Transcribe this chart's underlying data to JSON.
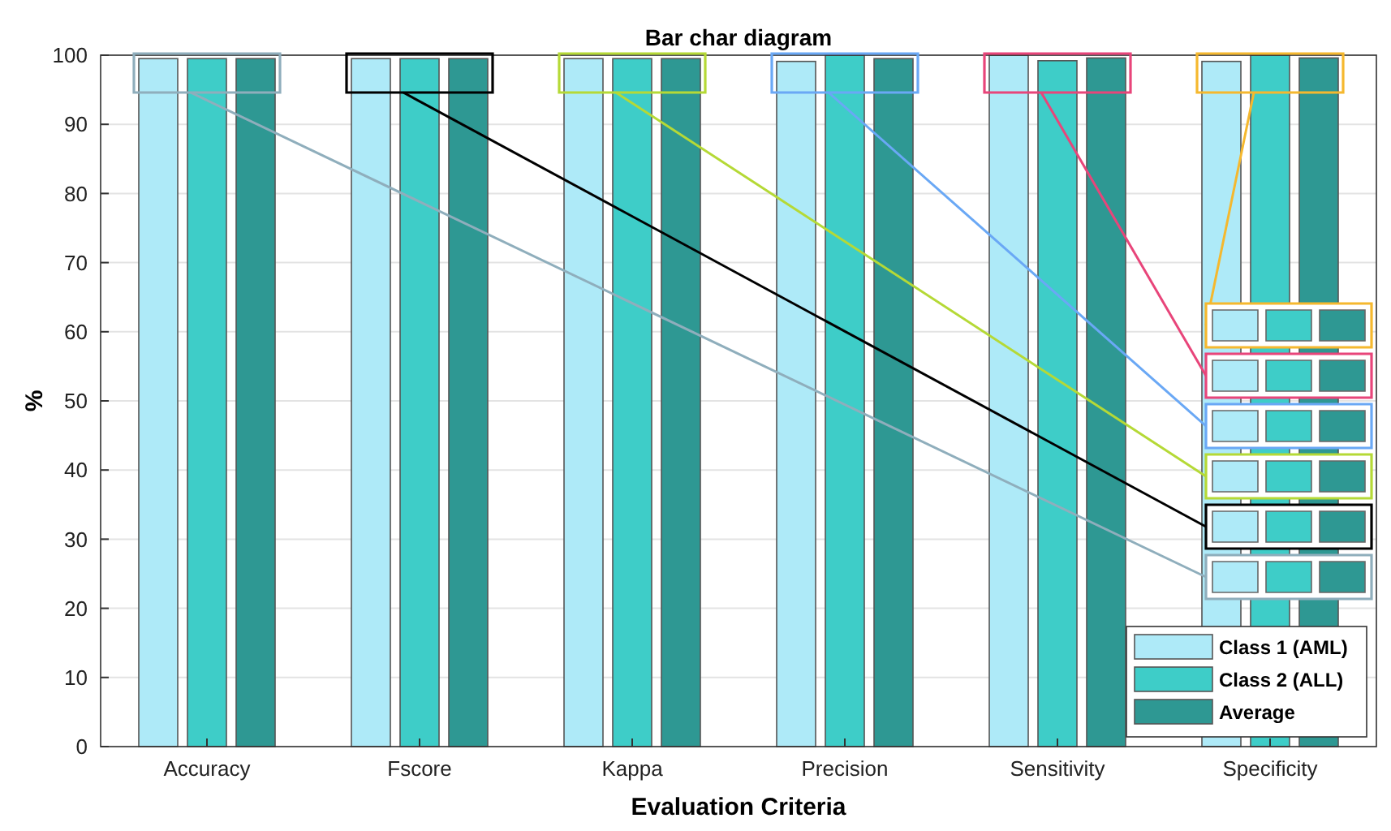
{
  "chart_data": {
    "type": "bar",
    "title": "Bar char diagram",
    "xlabel": "Evaluation Criteria",
    "ylabel": "%",
    "categories": [
      "Accuracy",
      "Fscore",
      "Kappa",
      "Precision",
      "Sensitivity",
      "Specificity"
    ],
    "series": [
      {
        "name": "Class 1 (AML)",
        "color": "#aeeaf8",
        "values": [
          99.5,
          99.5,
          99.5,
          99.1,
          100,
          99.1
        ]
      },
      {
        "name": "Class 2 (ALL)",
        "color": "#3ecdc8",
        "values": [
          99.5,
          99.5,
          99.5,
          100,
          99.2,
          100
        ]
      },
      {
        "name": "Average",
        "color": "#2e9893",
        "values": [
          99.5,
          99.5,
          99.5,
          99.5,
          99.6,
          99.6
        ]
      }
    ],
    "ylim": [
      0,
      100
    ],
    "yticks": [
      0,
      10,
      20,
      30,
      40,
      50,
      60,
      70,
      80,
      90,
      100
    ],
    "grid": "y",
    "legend": "bottom right"
  }
}
